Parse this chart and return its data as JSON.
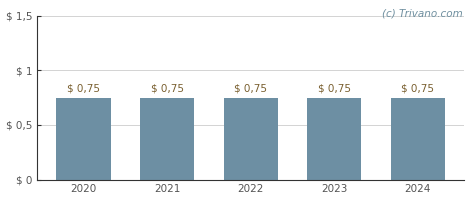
{
  "categories": [
    2020,
    2021,
    2022,
    2023,
    2024
  ],
  "values": [
    0.75,
    0.75,
    0.75,
    0.75,
    0.75
  ],
  "bar_color": "#6d8fa3",
  "bar_labels": [
    "$ 0,75",
    "$ 0,75",
    "$ 0,75",
    "$ 0,75",
    "$ 0,75"
  ],
  "ylim": [
    0,
    1.5
  ],
  "yticks": [
    0,
    0.5,
    1.0,
    1.5
  ],
  "ytick_labels": [
    "$ 0",
    "$ 0,5",
    "$ 1",
    "$ 1,5"
  ],
  "watermark": "(c) Trivano.com",
  "watermark_color": "#7090a0",
  "bar_label_color": "#7a6030",
  "bar_label_fontsize": 7.5,
  "background_color": "#ffffff",
  "grid_color": "#cccccc",
  "tick_label_color": "#555555",
  "tick_label_fontsize": 7.5,
  "bar_width": 0.65,
  "spine_color": "#333333"
}
